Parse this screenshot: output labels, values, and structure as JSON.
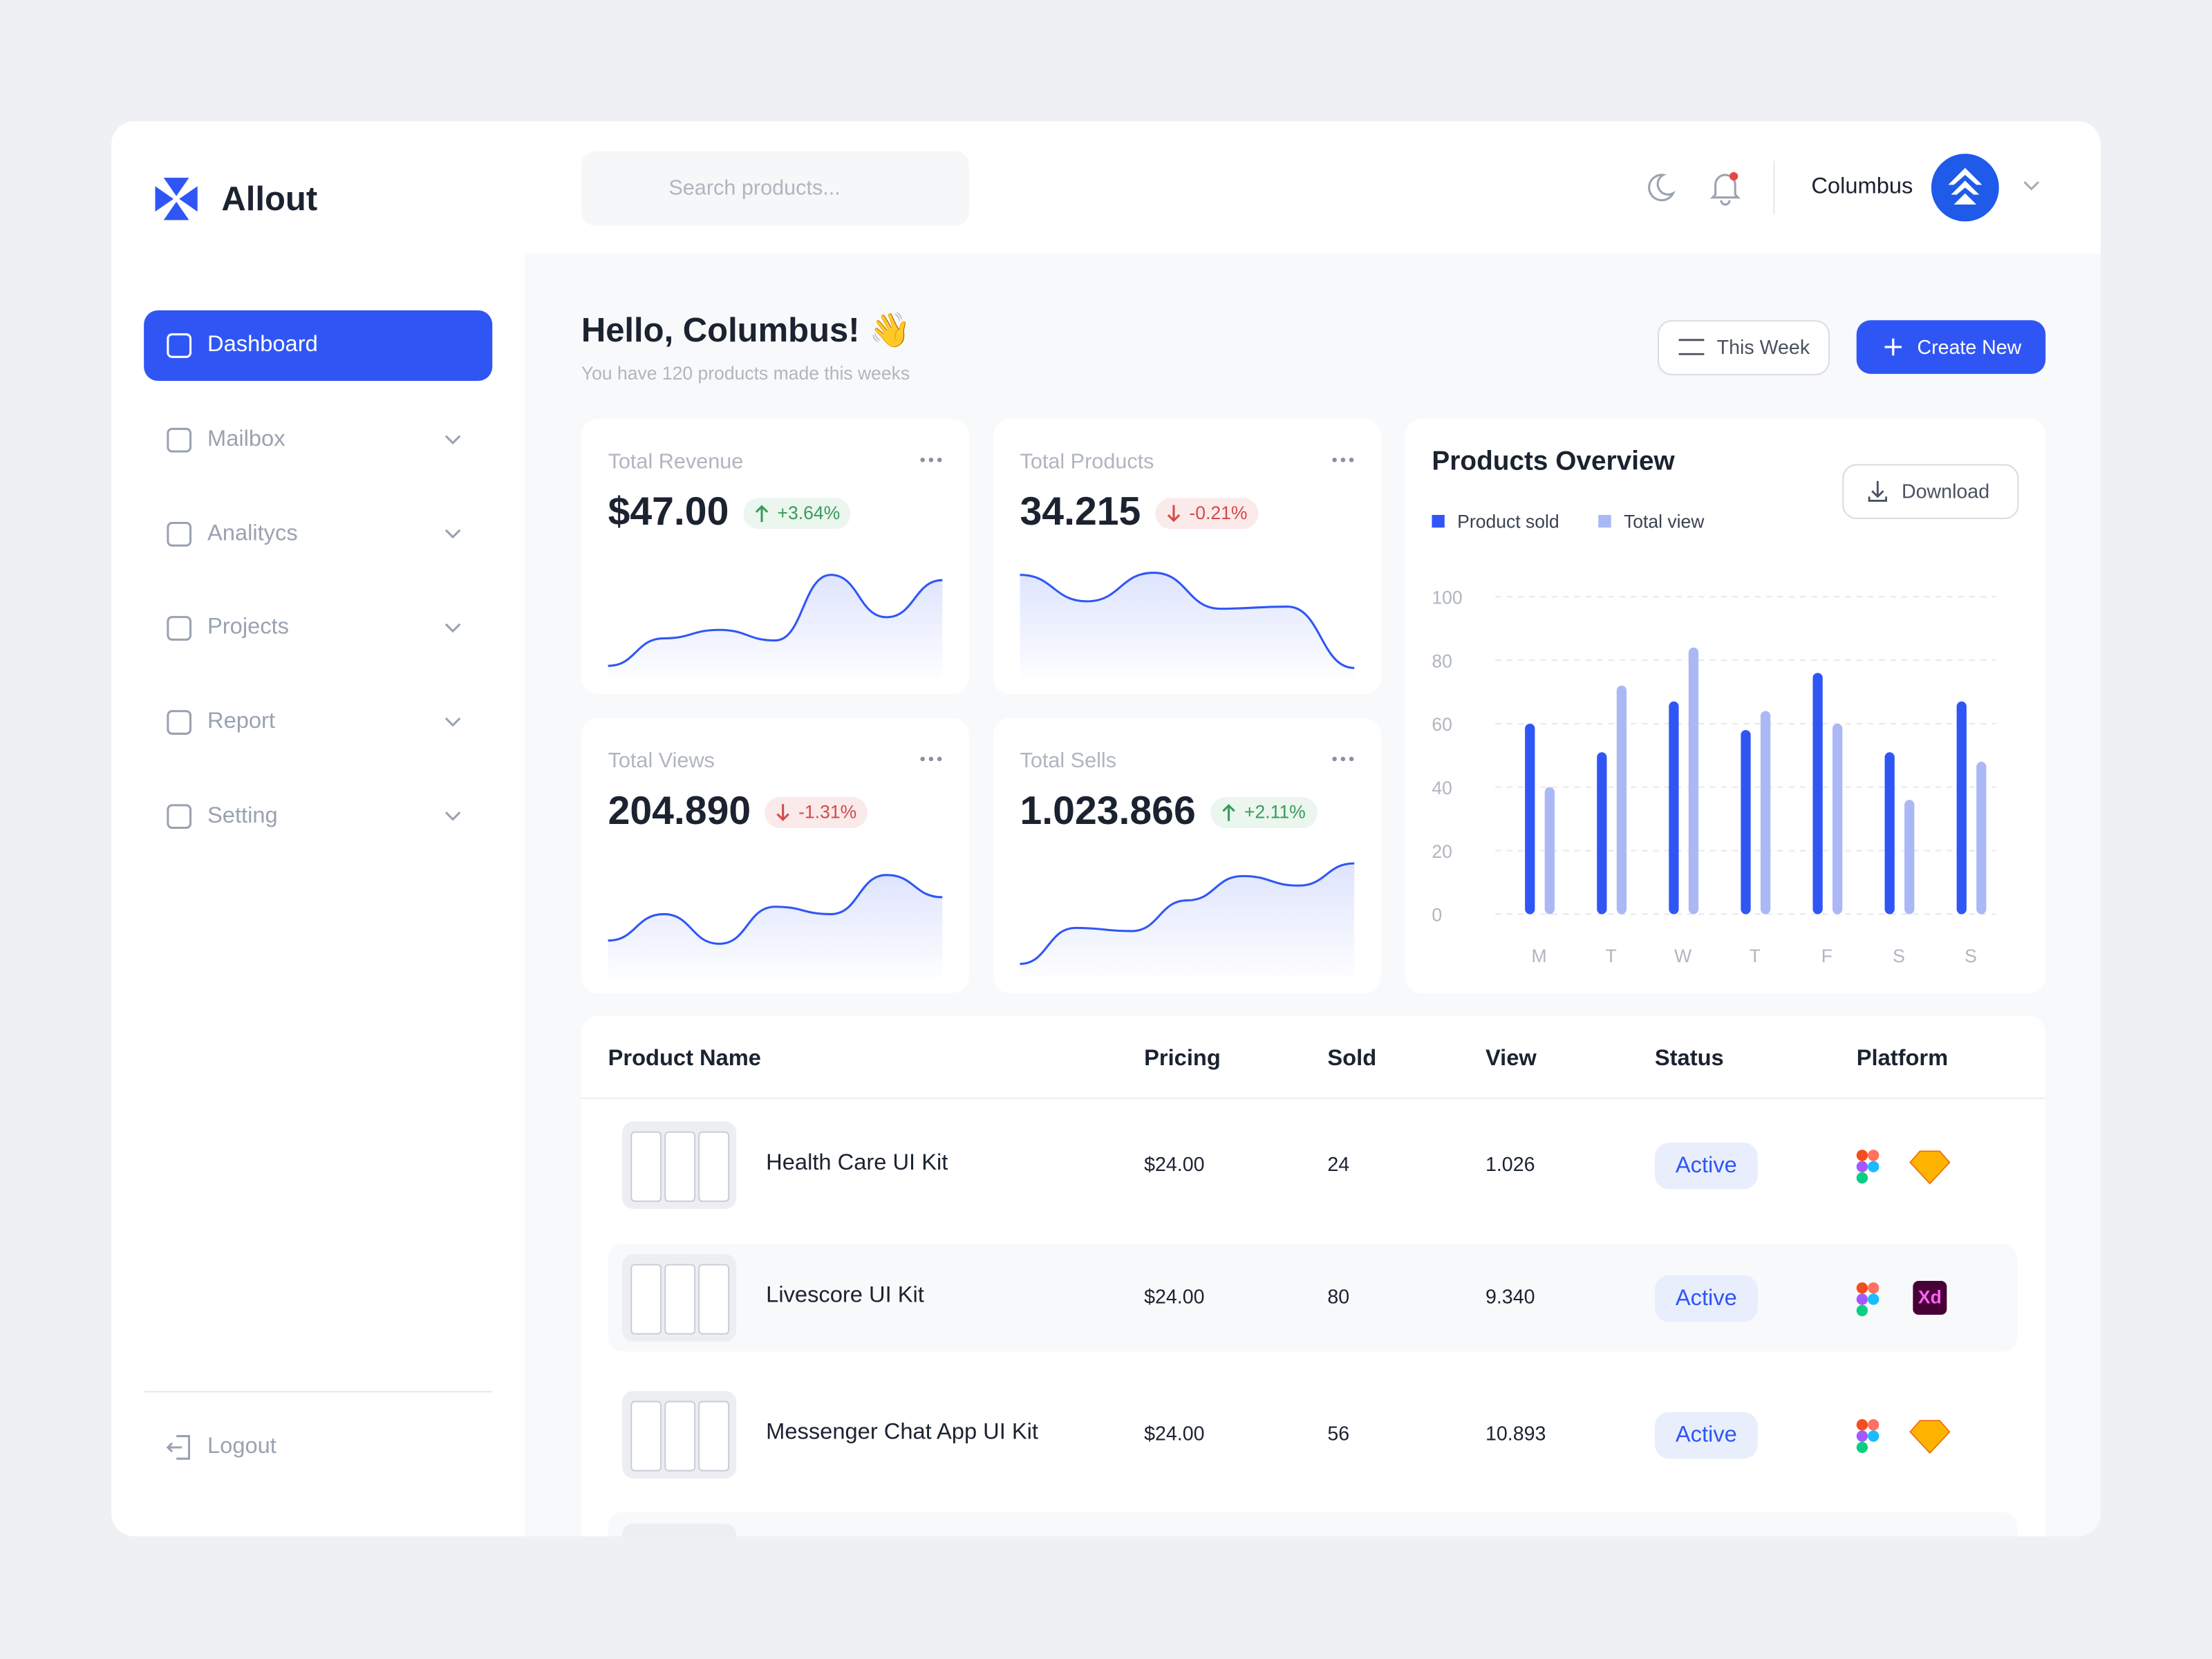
{
  "sidebar": {
    "brand": "Allout",
    "nav": [
      "Dashboard",
      "Mailbox",
      "Analitycs",
      "Projects",
      "Report",
      "Setting"
    ],
    "logout": "Logout"
  },
  "header": {
    "search_placeholder": "Search products...",
    "user": "Columbus"
  },
  "greeting": {
    "title": "Hello, Columbus! 👋",
    "subtitle": "You have 120 products made this weeks"
  },
  "actions": {
    "filter": "This Week",
    "create": "Create New"
  },
  "stats": [
    {
      "label": "Total Revenue",
      "value": "$47.00",
      "change": "+3.64%",
      "trend": "up",
      "sparkline": [
        4,
        30,
        38,
        28,
        90,
        50,
        85
      ]
    },
    {
      "label": "Total Products",
      "value": "34.215",
      "change": "-0.21%",
      "trend": "down",
      "sparkline": [
        90,
        65,
        92,
        58,
        60,
        2
      ]
    },
    {
      "label": "Total Views",
      "value": "204.890",
      "change": "-1.31%",
      "trend": "down",
      "sparkline": [
        27,
        52,
        24,
        59,
        52,
        89,
        68
      ]
    },
    {
      "label": "Total Sells",
      "value": "1.023.866",
      "change": "+2.11%",
      "trend": "up",
      "sparkline": [
        5,
        39,
        36,
        65,
        88,
        79,
        100
      ]
    }
  ],
  "chart_data": {
    "type": "bar",
    "title": "Products Overview",
    "categories": [
      "M",
      "T",
      "W",
      "T",
      "F",
      "S",
      "S"
    ],
    "series": [
      {
        "name": "Product sold",
        "color": "#2f56f5",
        "values": [
          60,
          51,
          67,
          58,
          76,
          51,
          67
        ]
      },
      {
        "name": "Total view",
        "color": "#aab8f6",
        "values": [
          40,
          72,
          84,
          64,
          60,
          36,
          48
        ]
      }
    ],
    "ylim": [
      0,
      100
    ],
    "yticks": [
      0,
      20,
      40,
      60,
      80,
      100
    ],
    "grid": true
  },
  "download": "Download",
  "table": {
    "columns": [
      "Product Name",
      "Pricing",
      "Sold",
      "View",
      "Status",
      "Platform"
    ],
    "rows": [
      {
        "name": "Health Care UI Kit",
        "pricing": "$24.00",
        "sold": "24",
        "view": "1.026",
        "status": "Active"
      },
      {
        "name": "Livescore UI Kit",
        "pricing": "$24.00",
        "sold": "80",
        "view": "9.340",
        "status": "Active",
        "platform_badge": "Xd"
      },
      {
        "name": "Messenger Chat App UI Kit",
        "pricing": "$24.00",
        "sold": "56",
        "view": "10.893",
        "status": "Active"
      }
    ]
  }
}
